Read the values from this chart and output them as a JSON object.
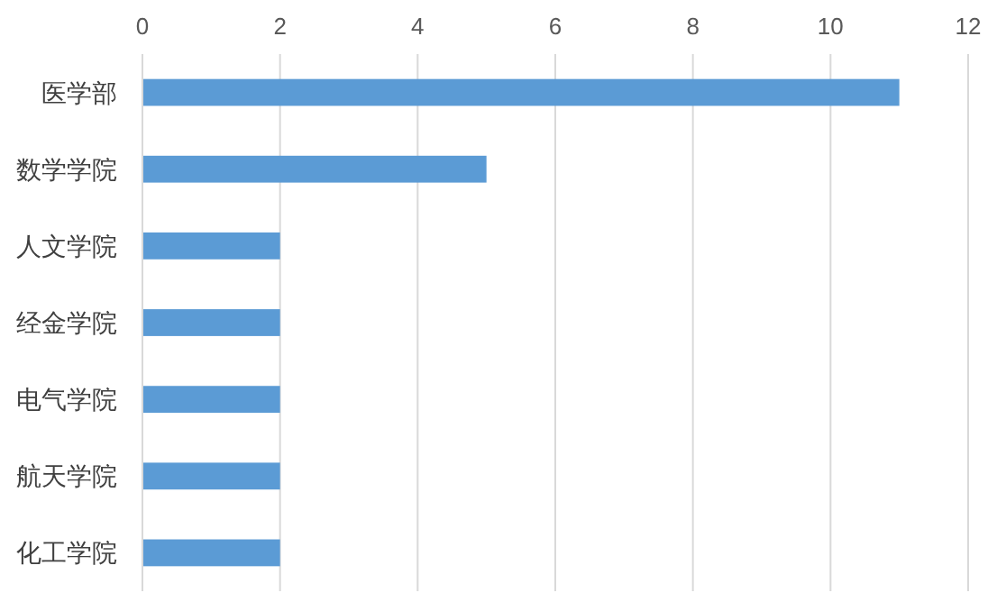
{
  "chart_data": {
    "type": "bar",
    "orientation": "horizontal",
    "categories": [
      "医学部",
      "数学学院",
      "人文学院",
      "经金学院",
      "电气学院",
      "航天学院",
      "化工学院"
    ],
    "values": [
      11,
      5,
      2,
      2,
      2,
      2,
      2
    ],
    "color": "#5b9bd5",
    "xlim": [
      0,
      12
    ],
    "xticks": [
      0,
      2,
      4,
      6,
      8,
      10,
      12
    ],
    "grid": "x"
  }
}
